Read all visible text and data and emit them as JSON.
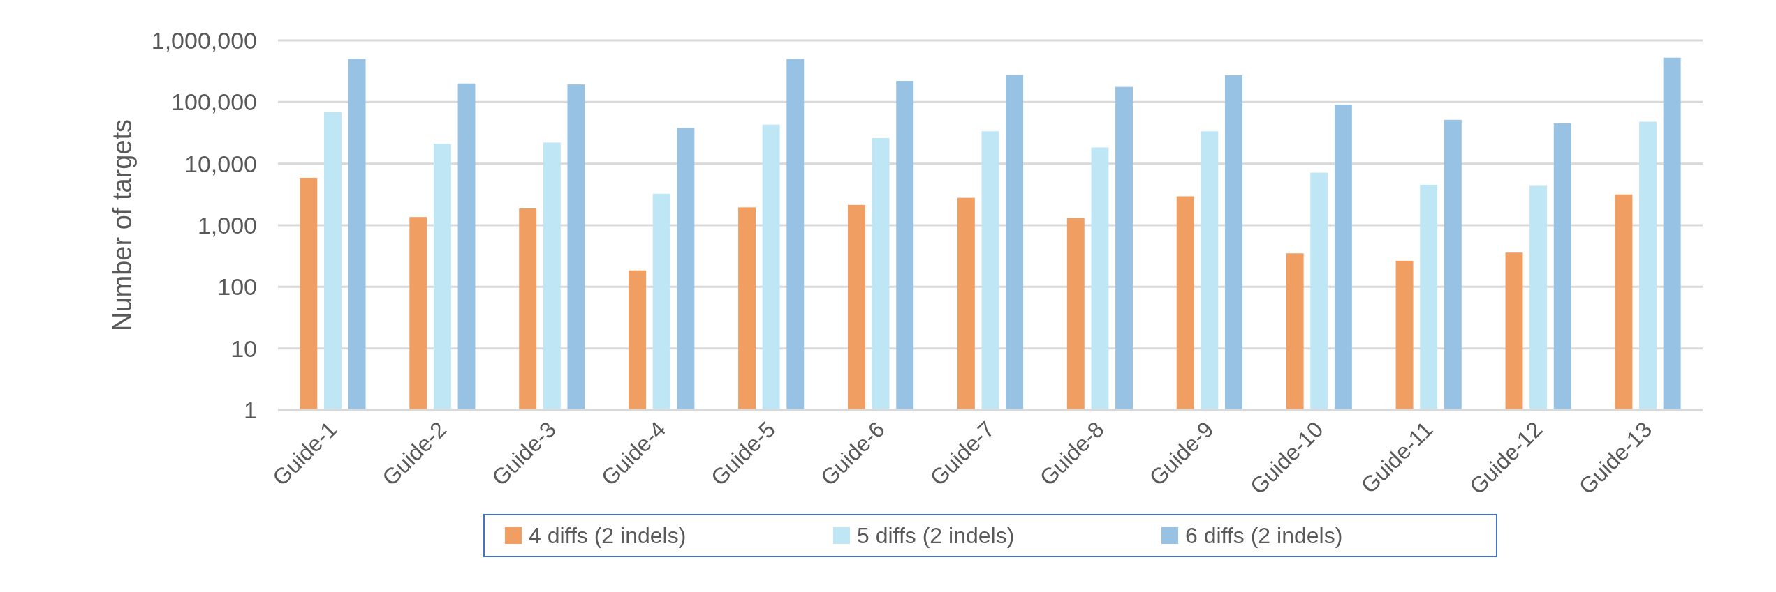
{
  "chart_data": {
    "type": "bar",
    "ylabel": "Number of targets",
    "log": "y",
    "grid": "y",
    "legend": "bottom",
    "categories": [
      "Guide-1",
      "Guide-2",
      "Guide-3",
      "Guide-4",
      "Guide-5",
      "Guide-6",
      "Guide-7",
      "Guide-8",
      "Guide-9",
      "Guide-10",
      "Guide-11",
      "Guide-12",
      "Guide-13"
    ],
    "ylim": [
      1,
      1000000
    ],
    "yticks": [
      {
        "value": 1,
        "label": "1"
      },
      {
        "value": 10,
        "label": "10"
      },
      {
        "value": 100,
        "label": "100"
      },
      {
        "value": 1000,
        "label": "1,000"
      },
      {
        "value": 10000,
        "label": "10,000"
      },
      {
        "value": 100000,
        "label": "100,000"
      },
      {
        "value": 1000000,
        "label": "1,000,000"
      }
    ],
    "series": [
      {
        "name": "4 diffs (2 indels)",
        "color": "#f19e63",
        "values": [
          5900,
          1360,
          1870,
          185,
          1950,
          2140,
          2790,
          1310,
          2950,
          350,
          265,
          360,
          3170
        ]
      },
      {
        "name": "5 diffs (2 indels)",
        "color": "#bfe6f4",
        "values": [
          69000,
          21000,
          22000,
          3250,
          43000,
          26000,
          33500,
          18300,
          33500,
          7150,
          4550,
          4370,
          48000
        ]
      },
      {
        "name": "6 diffs (2 indels)",
        "color": "#98c2e4",
        "values": [
          500000,
          200000,
          193000,
          38000,
          500000,
          220000,
          276000,
          176000,
          272000,
          91000,
          51500,
          45300,
          525000
        ]
      }
    ]
  }
}
